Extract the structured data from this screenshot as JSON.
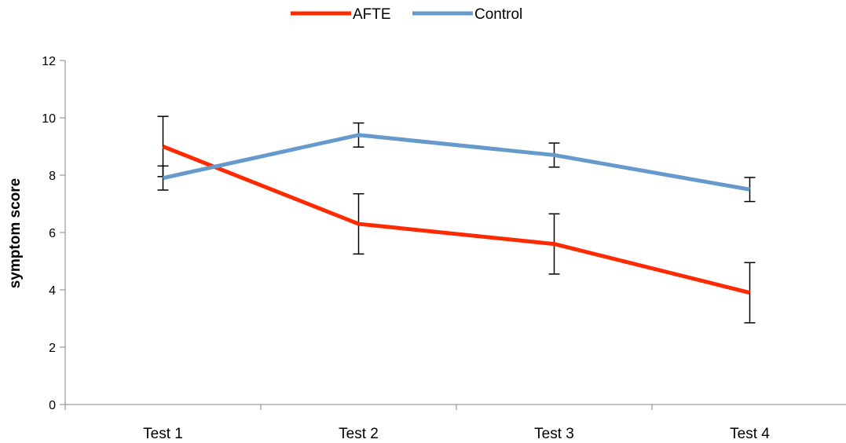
{
  "chart_data": {
    "type": "line",
    "title": "",
    "xlabel": "",
    "ylabel": "symptom score",
    "categories": [
      "Test 1",
      "Test 2",
      "Test 3",
      "Test 4"
    ],
    "ylim": [
      0,
      12
    ],
    "yticks": [
      0,
      2,
      4,
      6,
      8,
      10,
      12
    ],
    "grid": false,
    "legend": "top-center",
    "series": [
      {
        "name": "AFTE",
        "color": "#ff2a00",
        "values": [
          9.0,
          6.3,
          5.6,
          3.9
        ],
        "error": [
          1.05,
          1.05,
          1.05,
          1.05
        ]
      },
      {
        "name": "Control",
        "color": "#6699cc",
        "values": [
          7.9,
          9.4,
          8.7,
          7.5
        ],
        "error": [
          0.42,
          0.42,
          0.42,
          0.42
        ]
      }
    ]
  }
}
